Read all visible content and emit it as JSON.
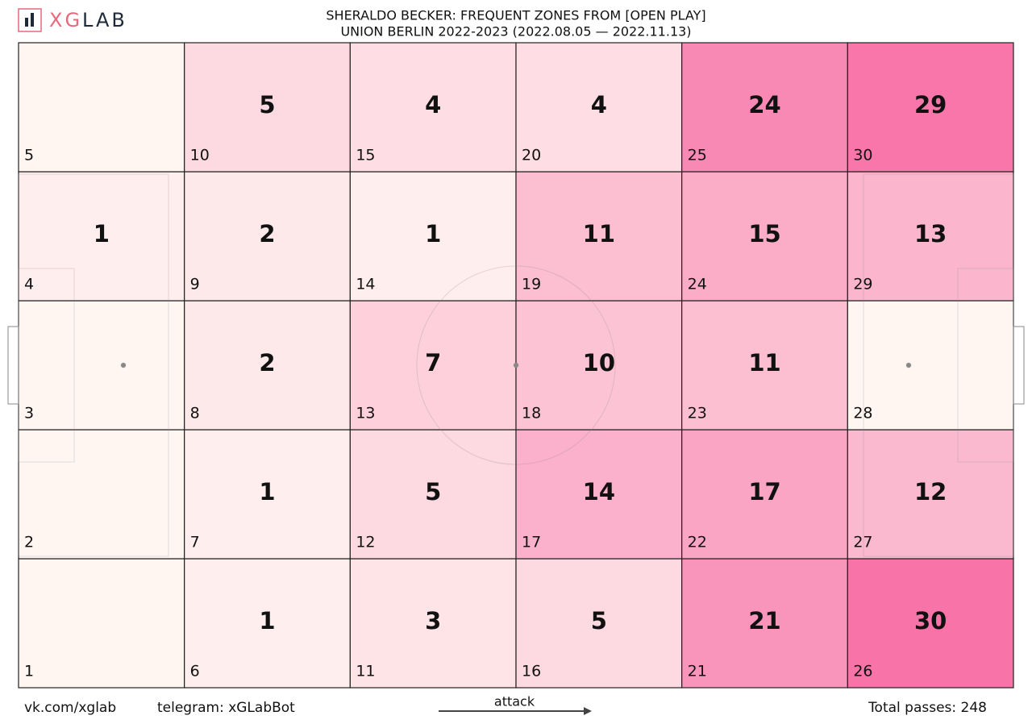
{
  "brand": {
    "accent": "XG",
    "rest": "LAB"
  },
  "chart_data": {
    "type": "heatmap",
    "title": "SHERALDO BECKER: FREQUENT ZONES FROM [OPEN PLAY]",
    "subtitle": "UNION BERLIN 2022-2023 (2022.08.05 — 2022.11.13)",
    "categories": [
      "1",
      "2",
      "3",
      "4",
      "5",
      "6",
      "7",
      "8",
      "9",
      "10",
      "11",
      "12",
      "13",
      "14",
      "15",
      "16",
      "17",
      "18",
      "19",
      "20",
      "21",
      "22",
      "23",
      "24",
      "25",
      "26",
      "27",
      "28",
      "29",
      "30"
    ],
    "values": [
      null,
      null,
      null,
      1,
      null,
      1,
      1,
      2,
      2,
      5,
      3,
      5,
      7,
      1,
      4,
      5,
      14,
      10,
      11,
      4,
      21,
      17,
      11,
      15,
      24,
      30,
      12,
      null,
      13,
      29
    ],
    "color_scale": [
      "#fff5f0",
      "#f768a1"
    ],
    "direction_label": "attack",
    "footer": {
      "vk": "vk.com/xglab",
      "telegram": "telegram: xGLabBot",
      "total": "Total passes: 248"
    }
  }
}
